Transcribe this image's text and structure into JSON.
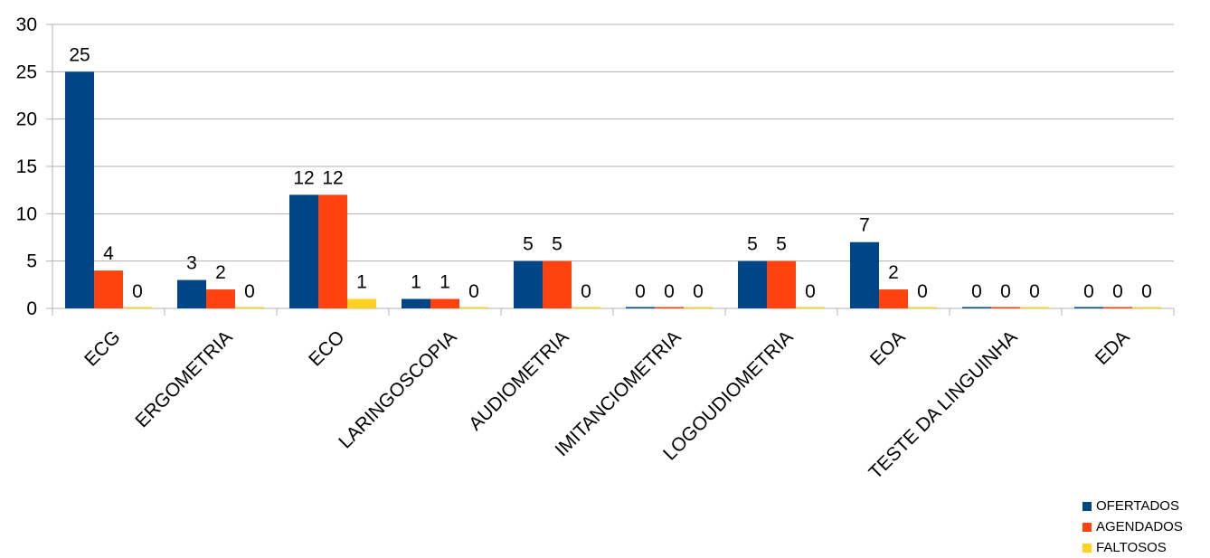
{
  "chart_data": {
    "type": "bar",
    "categories": [
      "ECG",
      "ERGOMETRIA",
      "ECO",
      "LARINGOSCOPIA",
      "AUDIOMETRIA",
      "IMITANCIOMETRIA",
      "LOGOUDIOMETRIA",
      "EOA",
      "TESTE DA LINGUINHA",
      "EDA"
    ],
    "series": [
      {
        "name": "OFERTADOS",
        "color": "#004586",
        "values": [
          25,
          3,
          12,
          1,
          5,
          0,
          5,
          7,
          0,
          0
        ]
      },
      {
        "name": "AGENDADOS",
        "color": "#ff420e",
        "values": [
          4,
          2,
          12,
          1,
          5,
          0,
          5,
          2,
          0,
          0
        ]
      },
      {
        "name": "FALTOSOS",
        "color": "#ffd320",
        "values": [
          0,
          0,
          1,
          0,
          0,
          0,
          0,
          0,
          0,
          0
        ]
      }
    ],
    "ylim": [
      0,
      30
    ],
    "yticks": [
      0,
      5,
      10,
      15,
      20,
      25,
      30
    ],
    "title": "",
    "xlabel": "",
    "ylabel": "",
    "grid": true,
    "legend_position": "bottom-right",
    "data_labels": true
  }
}
